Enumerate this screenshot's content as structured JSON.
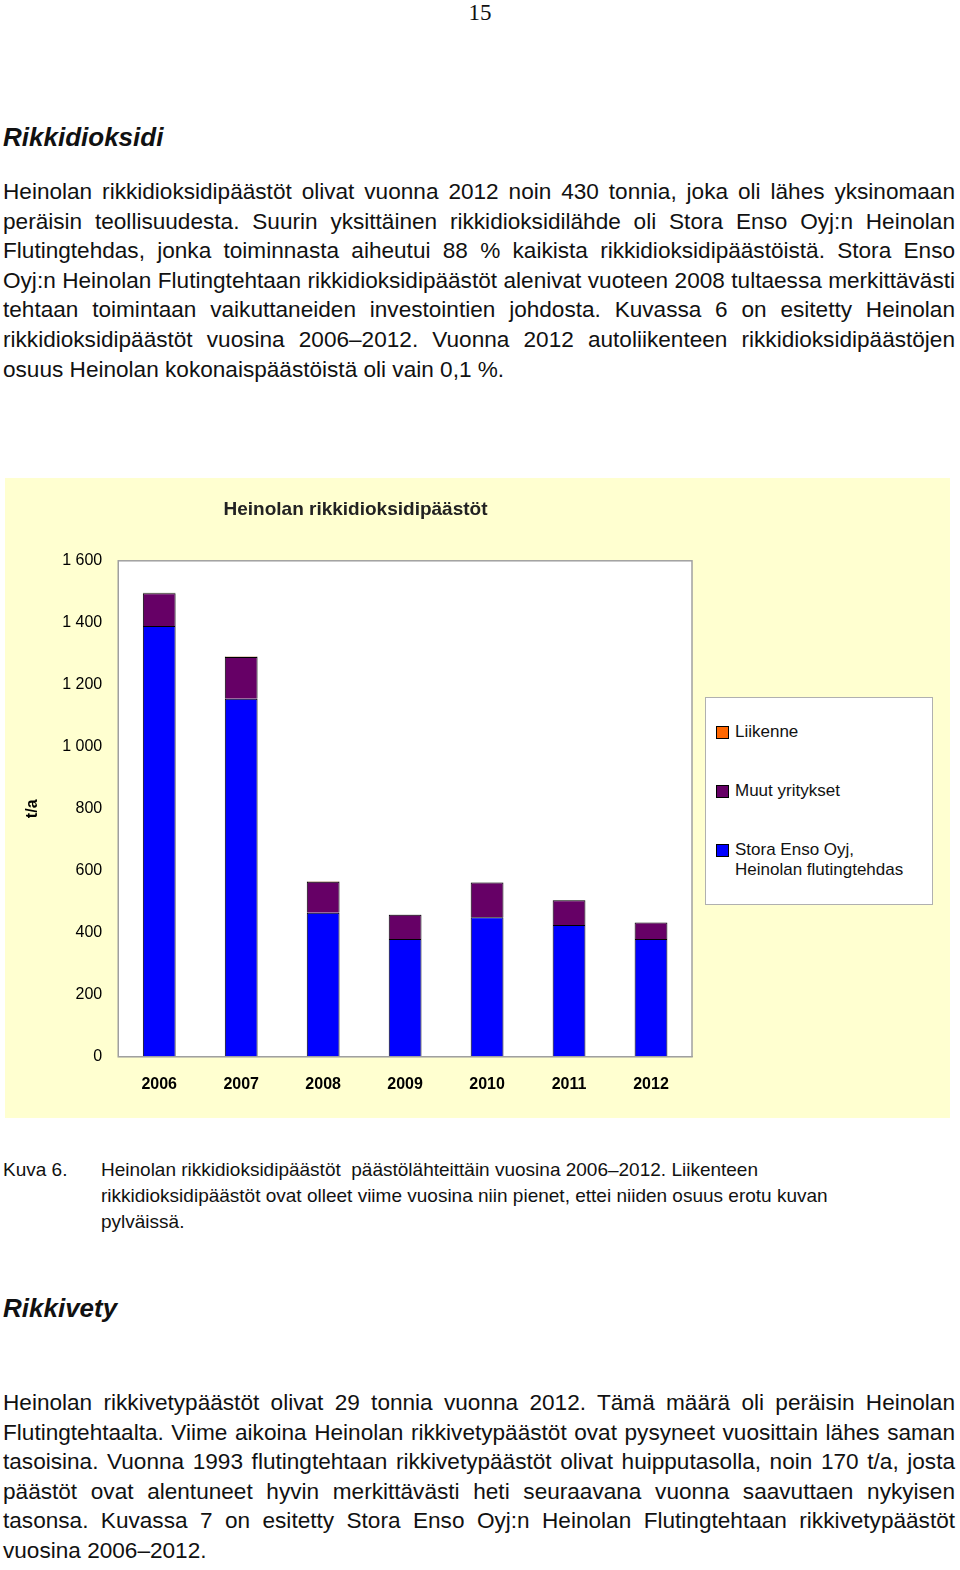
{
  "page_number": "15",
  "sections": [
    {
      "heading": "Rikkidioksidi",
      "paragraphs": [
        "Heinolan rikkidioksidipäästöt olivat vuonna 2012 noin 430 tonnia, joka oli lähes yksinomaan peräisin teollisuudesta. Suurin yksittäinen rikkidioksidilähde oli Stora Enso Oyj:n Heinolan Flutingtehdas, jonka toiminnasta aiheutui 88 % kaikista rikkidioksidipäästöistä. Stora Enso Oyj:n Heinolan Flutingtehtaan rikkidioksidipäästöt alenivat vuoteen 2008 tultaessa merkittävästi tehtaan toimintaan vaikuttaneiden investointien johdosta. Kuvassa 6 on esitetty Heinolan rikkidioksidipäästöt vuosina 2006–2012. Vuonna 2012 autoliikenteen rikkidioksidipäästöjen osuus Heinolan kokonaispäästöistä oli vain 0,1 %."
      ]
    },
    {
      "heading": "Rikkivety",
      "paragraphs": [
        "Heinolan rikkivetypäästöt olivat 29 tonnia vuonna 2012. Tämä määrä oli peräisin Heinolan Flutingtehtaalta. Viime aikoina Heinolan rikkivetypäästöt ovat pysyneet vuosittain lähes saman tasoisina. Vuonna 1993 flutingtehtaan rikkivetypäästöt olivat huipputasolla, noin 170 t/a, josta päästöt ovat alentuneet hyvin merkittävästi heti seuraavana vuonna saavuttaen nykyisen tasonsa. Kuvassa 7 on esitetty Stora Enso Oyj:n Heinolan Flutingtehtaan rikkivetypäästöt vuosina 2006–2012."
      ]
    }
  ],
  "figure": {
    "label": "Kuva 6.",
    "caption": "Heinolan rikkidioksidipäästöt  päästölähteittäin vuosina 2006–2012. Liikenteen rikkidioksidipäästöt ovat olleet viime vuosina niin pienet, ettei niiden osuus erotu kuvan pylväissä."
  },
  "chart_data": {
    "type": "bar",
    "title": "Heinolan rikkidioksidipäästöt",
    "ylabel": "t/a",
    "categories": [
      "2006",
      "2007",
      "2008",
      "2009",
      "2010",
      "2011",
      "2012"
    ],
    "series": [
      {
        "name": "Stora Enso Oyj, Heinolan flutingtehdas",
        "color": "#0000ff",
        "values": [
          1390,
          1155,
          465,
          380,
          450,
          425,
          380
        ]
      },
      {
        "name": "Muut yritykset",
        "color": "#660066",
        "values": [
          105,
          135,
          100,
          78,
          112,
          80,
          53
        ]
      },
      {
        "name": "Liikenne",
        "color": "#ff6600",
        "values": [
          2,
          1.5,
          1,
          0.8,
          0.7,
          0.5,
          0.4
        ]
      }
    ],
    "stacked": true,
    "ylim": [
      0,
      1600
    ],
    "yticks": [
      0,
      200,
      400,
      600,
      800,
      {
        "value": 1000,
        "label": "1 000"
      },
      {
        "value": 1200,
        "label": "1 200"
      },
      {
        "value": 1400,
        "label": "1 400"
      },
      {
        "value": 1600,
        "label": "1 600"
      }
    ],
    "grid": false,
    "legend": "right"
  }
}
